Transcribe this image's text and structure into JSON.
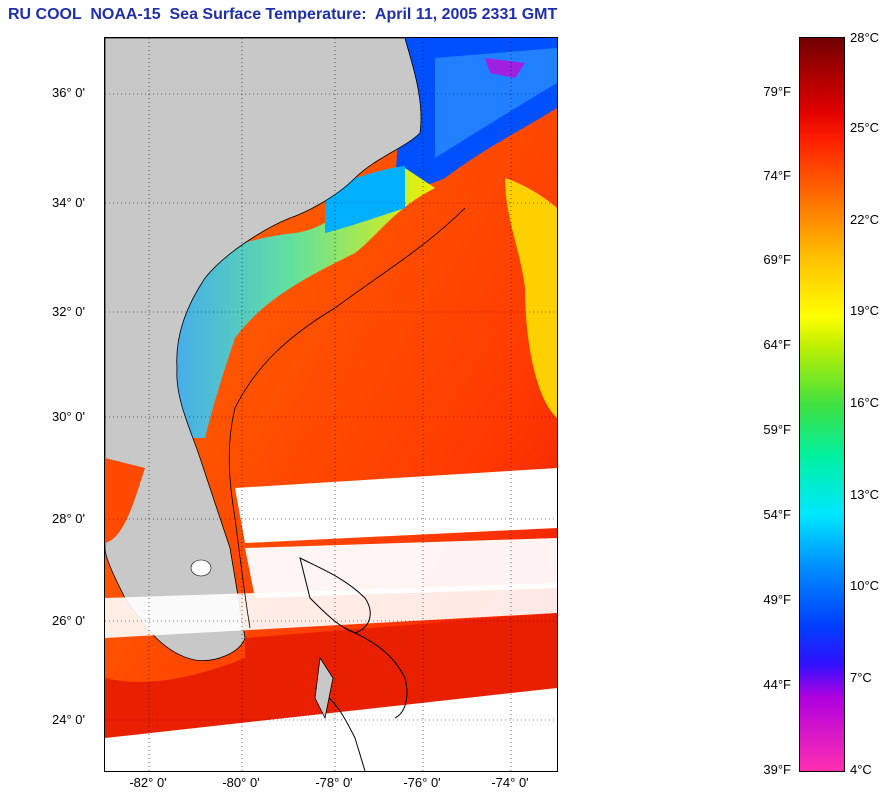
{
  "title": "RU COOL  NOAA-15  Sea Surface Temperature:  April 11, 2005 2331 GMT",
  "map": {
    "lat_labels": [
      "36° 0'",
      "34° 0'",
      "32° 0'",
      "30° 0'",
      "28° 0'",
      "26° 0'",
      "24° 0'"
    ],
    "lon_labels": [
      "-82° 0'",
      "-80° 0'",
      "-78° 0'",
      "-76° 0'",
      "-74° 0'"
    ],
    "land_color": "#c8c8c8",
    "no_data_color": "#ffffff",
    "warm_color": "#ff3000",
    "cool_color": "#00c8ff"
  },
  "colorbar": {
    "celsius_labels": [
      "28°C",
      "25°C",
      "22°C",
      "19°C",
      "16°C",
      "13°C",
      "10°C",
      "7°C",
      "4°C"
    ],
    "fahrenheit_labels": [
      "79°F",
      "74°F",
      "69°F",
      "64°F",
      "59°F",
      "54°F",
      "49°F",
      "44°F",
      "39°F"
    ]
  }
}
